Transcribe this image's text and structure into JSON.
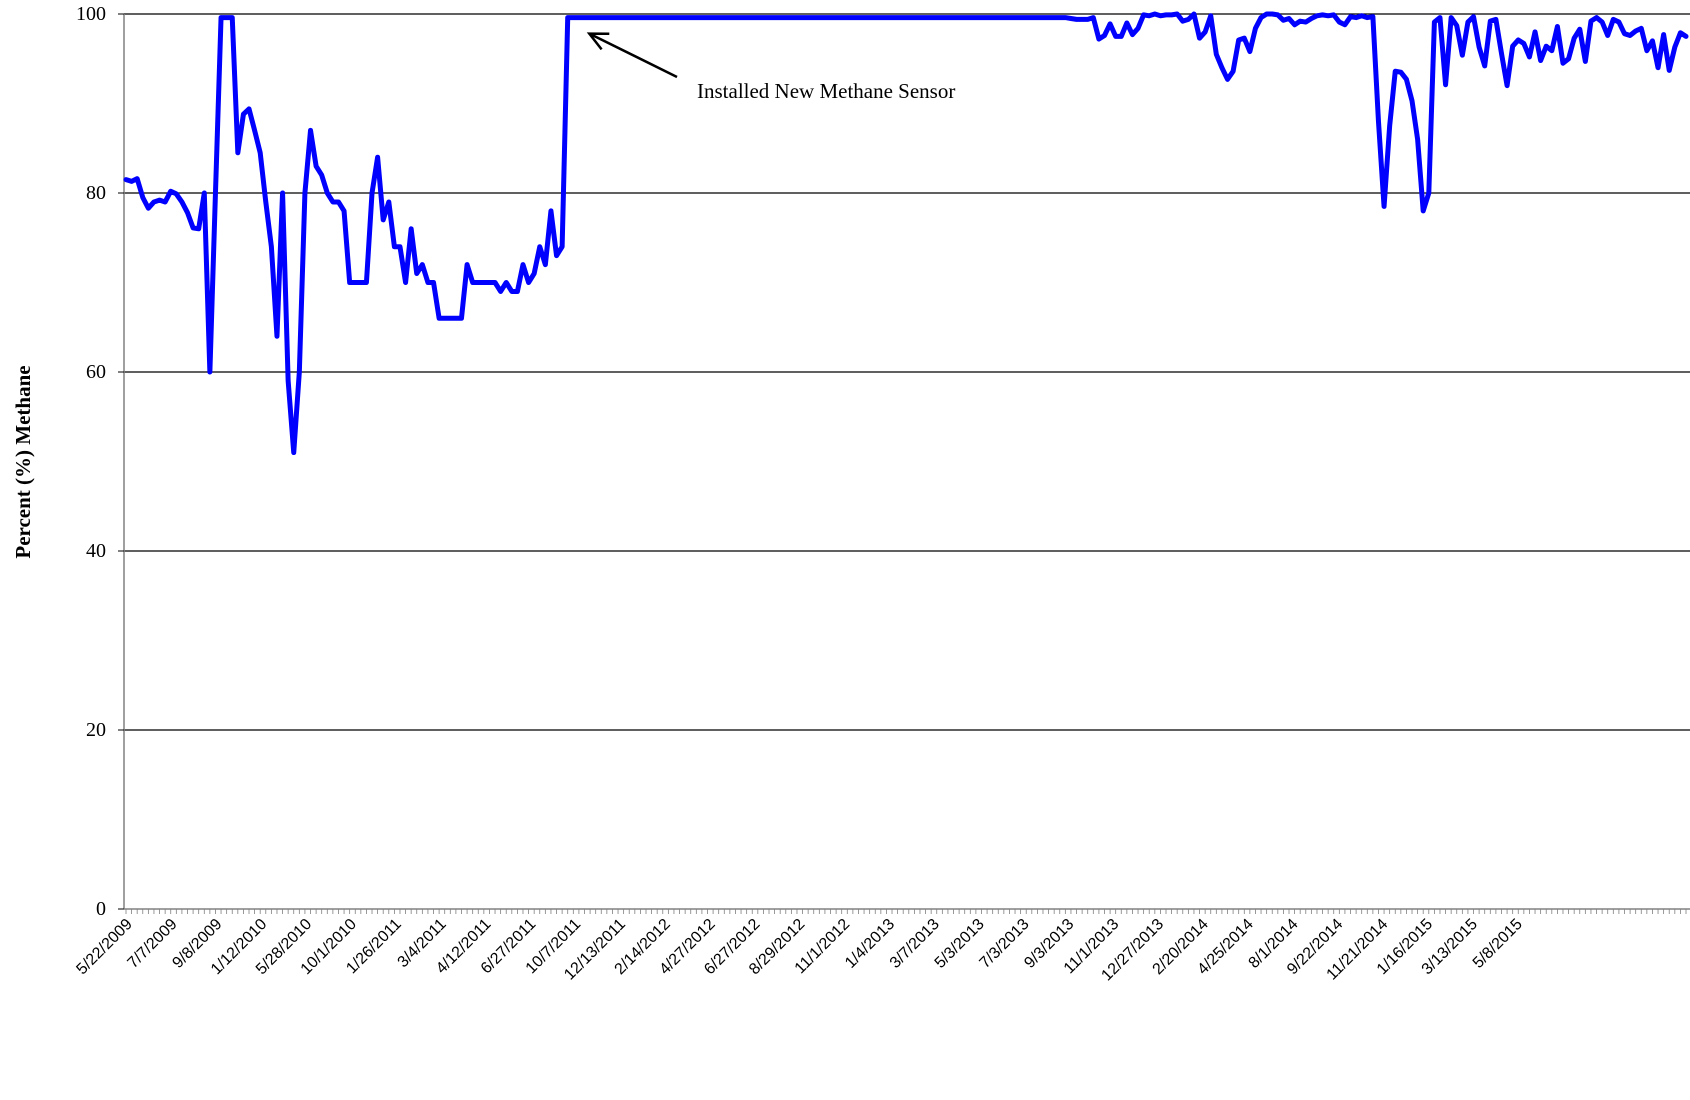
{
  "chart_data": {
    "type": "line",
    "title": "",
    "xlabel": "",
    "ylabel": "Percent (%) Methane",
    "ylim": [
      0,
      100
    ],
    "yticks": [
      0,
      20,
      40,
      60,
      80,
      100
    ],
    "grid": true,
    "xticks": [
      "5/22/2009",
      "7/7/2009",
      "9/8/2009",
      "1/12/2010",
      "5/28/2010",
      "10/1/2010",
      "1/26/2011",
      "3/4/2011",
      "4/12/2011",
      "6/27/2011",
      "10/7/2011",
      "12/13/2011",
      "2/14/2012",
      "4/27/2012",
      "6/27/2012",
      "8/29/2012",
      "11/1/2012",
      "1/4/2013",
      "3/7/2013",
      "5/3/2013",
      "7/3/2013",
      "9/3/2013",
      "11/1/2013",
      "12/27/2013",
      "2/20/2014",
      "4/25/2014",
      "8/1/2014",
      "9/22/2014",
      "11/21/2014",
      "1/16/2015",
      "3/13/2015",
      "5/8/2015"
    ],
    "series": [
      {
        "color": "#0000ff",
        "values": [
          81.5,
          81.3,
          81.6,
          79.5,
          78.3,
          79.0,
          79.2,
          79.0,
          80.2,
          79.9,
          79.0,
          77.8,
          76.1,
          76.0,
          80.0,
          60.0,
          80.0,
          99.6,
          99.6,
          99.6,
          84.5,
          88.8,
          89.4,
          87.0,
          84.5,
          79.0,
          74.0,
          64.0,
          80.0,
          59.0,
          51.0,
          60.0,
          80.0,
          87.0,
          83.0,
          82.0,
          80.0,
          79.0,
          79.0,
          78.0,
          70.0,
          70.0,
          70.0,
          70.0,
          80.0,
          84.0,
          77.0,
          79.0,
          74.0,
          74.0,
          70.0,
          76.0,
          71.0,
          72.0,
          70.0,
          70.0,
          66.0,
          66.0,
          66.0,
          66.0,
          66.0,
          72.0,
          70.0,
          70.0,
          70.0,
          70.0,
          70.0,
          69.0,
          70.0,
          69.0,
          69.0,
          72.0,
          70.0,
          71.0,
          74.0,
          72.0,
          78.0,
          73.0,
          74.0,
          99.6,
          99.6,
          99.6,
          99.6,
          99.6,
          99.6,
          99.6,
          99.6,
          99.6,
          99.6,
          99.6,
          99.6,
          99.6,
          99.6,
          99.6,
          99.6,
          99.6,
          99.6,
          99.6,
          99.6,
          99.6,
          99.6,
          99.6,
          99.6,
          99.6,
          99.6,
          99.6,
          99.6,
          99.6,
          99.6,
          99.6,
          99.6,
          99.6,
          99.6,
          99.6,
          99.6,
          99.6,
          99.6,
          99.6,
          99.6,
          99.6,
          99.6,
          99.6,
          99.6,
          99.6,
          99.6,
          99.6,
          99.6,
          99.6,
          99.6,
          99.6,
          99.6,
          99.6,
          99.6,
          99.6,
          99.6,
          99.6,
          99.6,
          99.6,
          99.6,
          99.6,
          99.6,
          99.6,
          99.6,
          99.6,
          99.6,
          99.6,
          99.6,
          99.6,
          99.6,
          99.6,
          99.6,
          99.6,
          99.6,
          99.6,
          99.6,
          99.6,
          99.6,
          99.6,
          99.6,
          99.6,
          99.6,
          99.6,
          99.6,
          99.6,
          99.6,
          99.6,
          99.6,
          99.6,
          99.6,
          99.5,
          99.4,
          99.4,
          99.4,
          99.6,
          97.2,
          97.6,
          98.9,
          97.5,
          97.5,
          99.0,
          97.7,
          98.4,
          99.9,
          99.8,
          100.0,
          99.8,
          99.9,
          99.9,
          100.0,
          99.2,
          99.4,
          100.0,
          97.3,
          98.0,
          99.8,
          95.5,
          94.0,
          92.7,
          93.6,
          97.1,
          97.3,
          95.8,
          98.4,
          99.6,
          100.0,
          100.0,
          99.9,
          99.3,
          99.5,
          98.8,
          99.2,
          99.1,
          99.5,
          99.8,
          99.9,
          99.8,
          99.9,
          99.1,
          98.8,
          99.7,
          99.6,
          99.8,
          99.6,
          99.7,
          88.0,
          78.5,
          87.5,
          93.6,
          93.5,
          92.7,
          90.3,
          86.0,
          78.0,
          80.0,
          99.1,
          99.6,
          92.1,
          99.6,
          98.7,
          95.4,
          99.1,
          99.7,
          96.3,
          94.2,
          99.2,
          99.4,
          95.6,
          92.0,
          96.4,
          97.1,
          96.7,
          95.2,
          98.0,
          94.8,
          96.4,
          95.9,
          98.6,
          94.5,
          95.0,
          97.3,
          98.3,
          94.7,
          99.2,
          99.6,
          99.1,
          97.6,
          99.4,
          99.1,
          97.8,
          97.6,
          98.1,
          98.4,
          95.9,
          97.0,
          94.0,
          97.7,
          93.7,
          96.3,
          97.9,
          97.5
        ]
      }
    ],
    "annotations": [
      {
        "text": "Installed New Methane Sensor",
        "x_index": 80,
        "y": 99.6
      }
    ]
  }
}
